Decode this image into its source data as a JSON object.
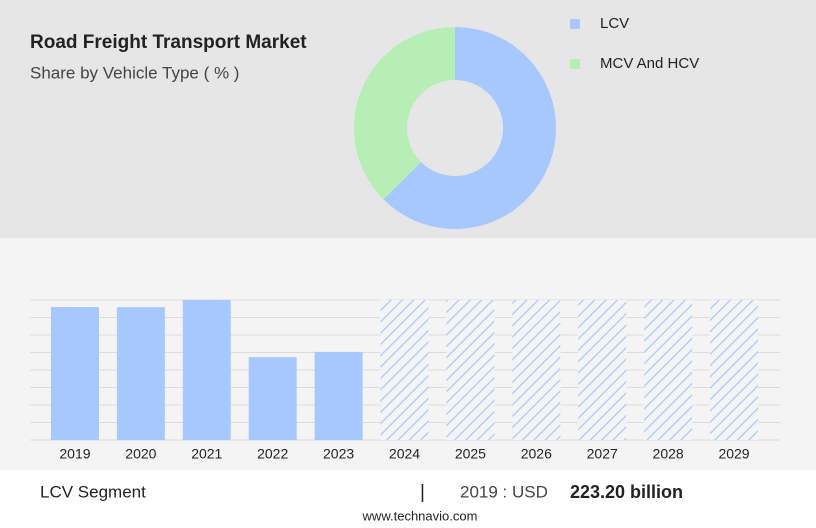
{
  "chart_data": [
    {
      "type": "pie",
      "title": "Road Freight Transport Market",
      "subtitle": "Share by Vehicle Type ( % )",
      "categories": [
        "LCV",
        "MCV And HCV"
      ],
      "values": [
        62.5,
        37.5
      ],
      "colors": [
        "#a6c8ff",
        "#b6eeb6"
      ],
      "donut": true
    },
    {
      "type": "bar",
      "categories": [
        "2019",
        "2020",
        "2021",
        "2022",
        "2023",
        "2024",
        "2025",
        "2026",
        "2027",
        "2028",
        "2029"
      ],
      "values": [
        223.2,
        223,
        235,
        139,
        148,
        null,
        null,
        null,
        null,
        null,
        null
      ],
      "color": "#a6c8ff",
      "ylim": [
        0,
        235
      ]
    }
  ],
  "footer": {
    "segment": "LCV Segment",
    "separator": "|",
    "year": "2019 : USD",
    "value": "223.20 billion",
    "source": "www.technavio.com"
  }
}
